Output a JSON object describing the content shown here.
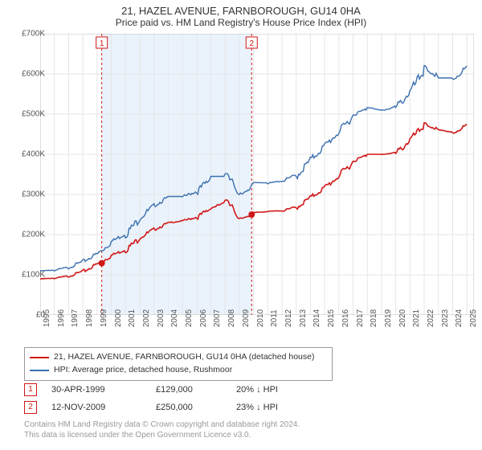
{
  "title": "21, HAZEL AVENUE, FARNBOROUGH, GU14 0HA",
  "subtitle": "Price paid vs. HM Land Registry's House Price Index (HPI)",
  "chart": {
    "type": "line",
    "background_color": "#ffffff",
    "grid_color": "#e6e6e6",
    "border_color": "#bfbfbf",
    "x_years": [
      1995,
      1996,
      1997,
      1998,
      1999,
      2000,
      2001,
      2002,
      2003,
      2004,
      2005,
      2006,
      2007,
      2008,
      2009,
      2010,
      2011,
      2012,
      2013,
      2014,
      2015,
      2016,
      2017,
      2018,
      2019,
      2020,
      2021,
      2022,
      2023,
      2024,
      2025
    ],
    "xlim": [
      1995,
      2025.5
    ],
    "ylim": [
      0,
      700000
    ],
    "ytick_step": 100000,
    "yticks_labels": [
      "£0",
      "£100K",
      "£200K",
      "£300K",
      "£400K",
      "£500K",
      "£600K",
      "£700K"
    ],
    "label_fontsize": 10,
    "series": [
      {
        "name": "property",
        "label": "21, HAZEL AVENUE, FARNBOROUGH, GU14 0HA (detached house)",
        "color": "#d01818",
        "line_width": 1.6,
        "values_by_year": {
          "1995": 90000,
          "1996": 92000,
          "1997": 98000,
          "1998": 110000,
          "1999": 129000,
          "2000": 150000,
          "2001": 165000,
          "2002": 195000,
          "2003": 215000,
          "2004": 230000,
          "2005": 235000,
          "2006": 245000,
          "2007": 268000,
          "2008": 280000,
          "2009": 240000,
          "2010": 255000,
          "2011": 258000,
          "2012": 260000,
          "2013": 270000,
          "2014": 295000,
          "2015": 320000,
          "2016": 350000,
          "2017": 385000,
          "2018": 400000,
          "2019": 400000,
          "2020": 405000,
          "2021": 440000,
          "2022": 475000,
          "2023": 460000,
          "2024": 455000,
          "2025": 475000
        }
      },
      {
        "name": "hpi",
        "label": "HPI: Average price, detached house, Rushmoor",
        "color": "#3a6fb0",
        "line_width": 1.4,
        "values_by_year": {
          "1995": 110000,
          "1996": 112000,
          "1997": 120000,
          "1998": 135000,
          "1999": 155000,
          "2000": 185000,
          "2001": 205000,
          "2002": 245000,
          "2003": 275000,
          "2004": 295000,
          "2005": 295000,
          "2006": 310000,
          "2007": 345000,
          "2008": 345000,
          "2009": 300000,
          "2010": 330000,
          "2011": 328000,
          "2012": 335000,
          "2013": 350000,
          "2014": 390000,
          "2015": 425000,
          "2016": 460000,
          "2017": 500000,
          "2018": 515000,
          "2019": 510000,
          "2020": 520000,
          "2021": 560000,
          "2022": 615000,
          "2023": 590000,
          "2024": 590000,
          "2025": 620000
        }
      }
    ],
    "transactions_band": {
      "fill_color": "#eaf3fb",
      "start_year": 1999.33,
      "end_year": 2009.87
    },
    "markers": [
      {
        "id": "1",
        "year": 1999.33,
        "price": 129000,
        "color": "#d01818"
      },
      {
        "id": "2",
        "year": 2009.87,
        "price": 250000,
        "color": "#d01818"
      }
    ],
    "marker_line_dash": "3,3",
    "marker_box_border": "#d01818",
    "marker_dot_radius": 4
  },
  "legend": {
    "entries": [
      {
        "color": "#d01818",
        "label": "21, HAZEL AVENUE, FARNBOROUGH, GU14 0HA (detached house)"
      },
      {
        "color": "#3a6fb0",
        "label": "HPI: Average price, detached house, Rushmoor"
      }
    ]
  },
  "transactions": [
    {
      "id": "1",
      "date": "30-APR-1999",
      "price": "£129,000",
      "pct": "20% ↓ HPI",
      "color": "#d01818"
    },
    {
      "id": "2",
      "date": "12-NOV-2009",
      "price": "£250,000",
      "pct": "23% ↓ HPI",
      "color": "#d01818"
    }
  ],
  "footnote_line1": "Contains HM Land Registry data © Crown copyright and database right 2024.",
  "footnote_line2": "This data is licensed under the Open Government Licence v3.0."
}
